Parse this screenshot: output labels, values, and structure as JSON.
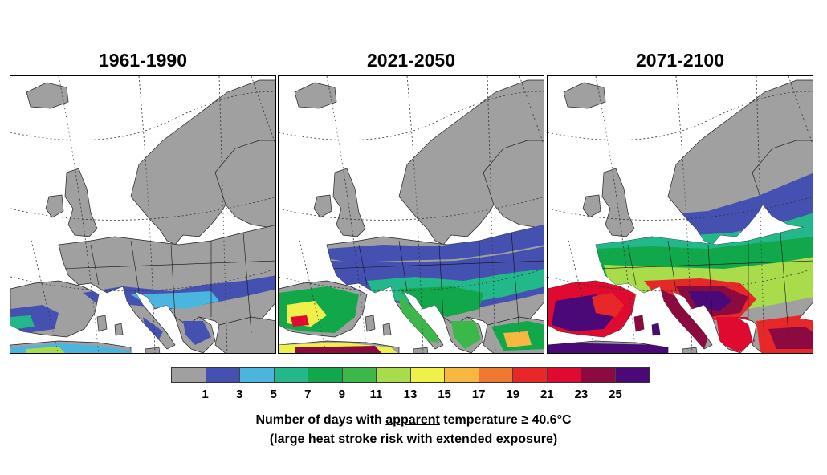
{
  "panels": [
    {
      "title": "1961-1990",
      "level": 0
    },
    {
      "title": "2021-2050",
      "level": 1
    },
    {
      "title": "2071-2100",
      "level": 2
    }
  ],
  "legend": {
    "colors": [
      "#a0a0a0",
      "#4451b0",
      "#4ab6e0",
      "#22b88a",
      "#10a84a",
      "#3bb84a",
      "#a8dc4a",
      "#f0f04a",
      "#f8b840",
      "#f07830",
      "#e82828",
      "#e00a30",
      "#8c0a40",
      "#4a0878"
    ],
    "ticks": [
      "1",
      "3",
      "5",
      "7",
      "9",
      "11",
      "13",
      "15",
      "17",
      "19",
      "21",
      "23",
      "25"
    ]
  },
  "caption": {
    "line1_pre": "Number of days with ",
    "line1_underlined": "apparent",
    "line1_post": " temperature ≥ 40.6°C",
    "line2": "(large heat stroke risk with extended exposure)"
  },
  "colors": {
    "land_default": "#a0a0a0",
    "sea": "#ffffff"
  }
}
